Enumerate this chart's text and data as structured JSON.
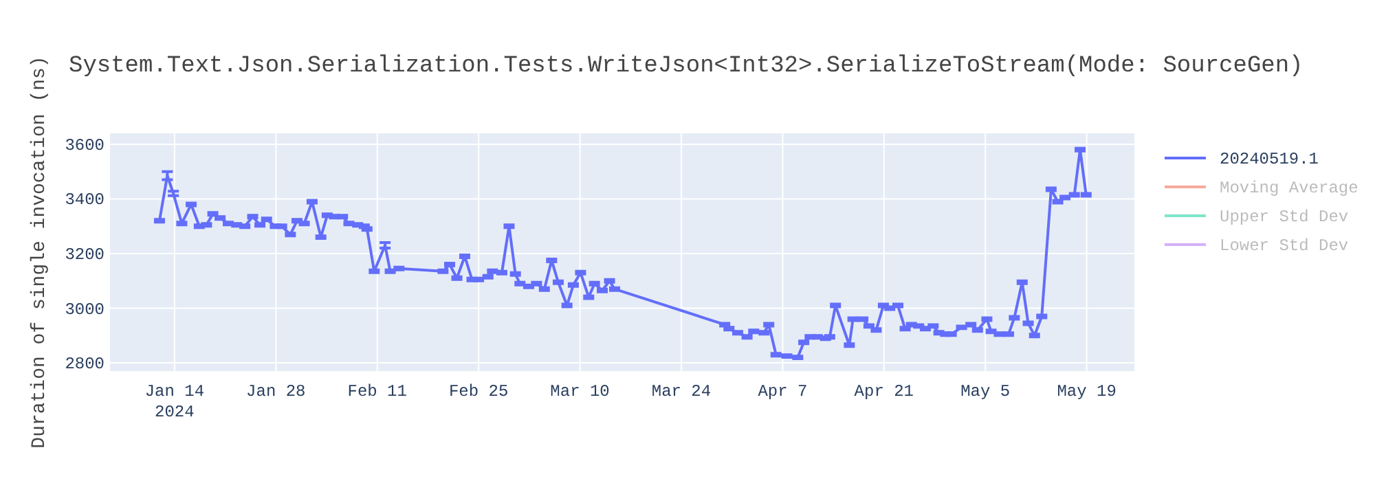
{
  "chart_data": {
    "type": "line",
    "title": "System.Text.Json.Serialization.Tests.WriteJson<Int32>.SerializeToStream(Mode: SourceGen)",
    "ylabel": "Duration of single invocation (ns)",
    "x": [
      "2024-01-11T22:00",
      "2024-01-13",
      "2024-01-13T20:00",
      "2024-01-15",
      "2024-01-16T07:00",
      "2024-01-17T10:00",
      "2024-01-18T10:00",
      "2024-01-19T07:00",
      "2024-01-20T07:00",
      "2024-01-21T10:00",
      "2024-01-22T14:00",
      "2024-01-23T17:00",
      "2024-01-24T19:00",
      "2024-01-25T19:00",
      "2024-01-26T17:00",
      "2024-01-27T22:00",
      "2024-01-28T19:00",
      "2024-01-30",
      "2024-01-30T22:00",
      "2024-01-31T22:00",
      "2024-02-02",
      "2024-02-03T05:00",
      "2024-02-04T02:00",
      "2024-02-05T02:00",
      "2024-02-06T05:00",
      "2024-02-07T02:00",
      "2024-02-08T07:00",
      "2024-02-09T05:00",
      "2024-02-09T14:00",
      "2024-02-10T14:00",
      "2024-02-12T02:00",
      "2024-02-12T19:00",
      "2024-02-14",
      "2024-02-20T02:00",
      "2024-02-21",
      "2024-02-22",
      "2024-02-23T02:00",
      "2024-02-24T02:00",
      "2024-02-25",
      "2024-02-26T07:00",
      "2024-02-26T22:00",
      "2024-02-28T05:00",
      "2024-02-29T05:00",
      "2024-03-01T02:00",
      "2024-03-01T17:00",
      "2024-03-02T22:00",
      "2024-03-04",
      "2024-03-05T02:00",
      "2024-03-06T02:00",
      "2024-03-07",
      "2024-03-08T05:00",
      "2024-03-09T02:00",
      "2024-03-10T02:00",
      "2024-03-11T05:00",
      "2024-03-12",
      "2024-03-13T02:00",
      "2024-03-14T02:00",
      "2024-03-14T19:00",
      "2024-03-30",
      "2024-03-30T14:00",
      "2024-03-31T19:00",
      "2024-04-02T02:00",
      "2024-04-03",
      "2024-04-04T10:00",
      "2024-04-05T02:00",
      "2024-04-06T02:00",
      "2024-04-07T14:00",
      "2024-04-09T02:00",
      "2024-04-09T22:00",
      "2024-04-10T19:00",
      "2024-04-11T19:00",
      "2024-04-12T22:00",
      "2024-04-13T12:00",
      "2024-04-14T07:00",
      "2024-04-16T05:00",
      "2024-04-16T17:00",
      "2024-04-18T02:00",
      "2024-04-18T22:00",
      "2024-04-19T22:00",
      "2024-04-20T22:00",
      "2024-04-21T19:00",
      "2024-04-22T22:00",
      "2024-04-23T22:00",
      "2024-04-24T19:00",
      "2024-04-25T19:00",
      "2024-04-26T17:00",
      "2024-04-27T19:00",
      "2024-04-28T14:00",
      "2024-04-29T12:00",
      "2024-04-30T07:00",
      "2024-05-01T17:00",
      "2024-05-03",
      "2024-05-03T22:00",
      "2024-05-05T05:00",
      "2024-05-05T19:00",
      "2024-05-06T22:00",
      "2024-05-08T05:00",
      "2024-05-09",
      "2024-05-10T02:00",
      "2024-05-10T22:00",
      "2024-05-11T19:00",
      "2024-05-12T19:00",
      "2024-05-14T02:00",
      "2024-05-15",
      "2024-05-16",
      "2024-05-17T07:00",
      "2024-05-18T02:00",
      "2024-05-18T22:00"
    ],
    "series": [
      {
        "name": "20240519.1",
        "color": "#636efa",
        "values": [
          3320,
          3485,
          3420,
          3310,
          3380,
          3300,
          3305,
          3345,
          3330,
          3310,
          3305,
          3300,
          3335,
          3305,
          3325,
          3300,
          3300,
          3270,
          3320,
          3310,
          3390,
          3260,
          3340,
          3335,
          3335,
          3310,
          3305,
          3300,
          3290,
          3135,
          3230,
          3135,
          3145,
          3135,
          3160,
          3110,
          3190,
          3105,
          3105,
          3115,
          3135,
          3130,
          3300,
          3125,
          3090,
          3080,
          3090,
          3070,
          3175,
          3095,
          3010,
          3085,
          3130,
          3040,
          3090,
          3065,
          3100,
          3070,
          2940,
          2925,
          2910,
          2895,
          2915,
          2910,
          2940,
          2830,
          2825,
          2820,
          2875,
          2895,
          2895,
          2890,
          2895,
          3010,
          2865,
          2960,
          2960,
          2935,
          2920,
          3010,
          3000,
          3010,
          2925,
          2940,
          2935,
          2925,
          2935,
          2910,
          2905,
          2905,
          2930,
          2940,
          2920,
          2960,
          2915,
          2905,
          2905,
          2965,
          3095,
          2945,
          2900,
          2970,
          3435,
          3390,
          3405,
          3415,
          3580,
          3415
        ],
        "errors": [
          5,
          15,
          8,
          5,
          5,
          5,
          5,
          5,
          5,
          5,
          5,
          5,
          5,
          5,
          5,
          5,
          5,
          5,
          5,
          5,
          5,
          5,
          5,
          5,
          5,
          5,
          5,
          5,
          5,
          5,
          10,
          5,
          5,
          5,
          5,
          5,
          5,
          5,
          5,
          5,
          5,
          5,
          5,
          5,
          5,
          5,
          5,
          5,
          5,
          5,
          5,
          5,
          5,
          5,
          5,
          5,
          5,
          5,
          5,
          5,
          5,
          5,
          5,
          5,
          5,
          5,
          5,
          5,
          5,
          5,
          5,
          5,
          5,
          5,
          5,
          5,
          5,
          5,
          5,
          5,
          5,
          5,
          5,
          5,
          5,
          5,
          5,
          5,
          5,
          5,
          5,
          5,
          5,
          5,
          5,
          5,
          5,
          5,
          5,
          5,
          5,
          5,
          5,
          5,
          5,
          5,
          5,
          5
        ]
      },
      {
        "name": "Moving Average",
        "color": "#ef553b",
        "values": [
          null,
          null,
          null,
          null,
          null,
          null,
          null,
          null,
          null,
          null,
          null,
          null,
          null,
          null,
          null,
          null,
          null,
          null,
          null,
          null,
          null,
          null,
          null,
          null,
          null,
          null,
          null,
          null,
          null,
          null,
          null,
          null,
          null,
          null,
          null,
          null,
          null,
          null,
          null,
          null,
          null,
          null,
          null,
          null,
          null,
          null,
          null,
          null,
          null,
          null,
          null,
          null,
          null,
          null,
          null,
          null,
          null,
          null,
          null,
          null,
          null,
          null,
          null,
          null,
          null,
          null,
          null,
          null,
          null,
          null,
          null,
          null,
          null,
          null,
          null,
          null,
          null,
          null,
          null,
          null,
          null,
          null,
          null,
          null,
          null,
          null,
          null,
          null,
          null,
          null,
          null,
          null,
          null,
          null,
          null,
          null,
          null,
          null,
          null,
          null,
          null,
          null,
          null,
          null,
          null,
          null,
          null,
          null
        ]
      },
      {
        "name": "Upper Std Dev",
        "color": "#00cc96",
        "values": [
          null,
          null,
          null,
          null,
          null,
          null,
          null,
          null,
          null,
          null,
          null,
          null,
          null,
          null,
          null,
          null,
          null,
          null,
          null,
          null,
          null,
          null,
          null,
          null,
          null,
          null,
          null,
          null,
          null,
          null,
          null,
          null,
          null,
          null,
          null,
          null,
          null,
          null,
          null,
          null,
          null,
          null,
          null,
          null,
          null,
          null,
          null,
          null,
          null,
          null,
          null,
          null,
          null,
          null,
          null,
          null,
          null,
          null,
          null,
          null,
          null,
          null,
          null,
          null,
          null,
          null,
          null,
          null,
          null,
          null,
          null,
          null,
          null,
          null,
          null,
          null,
          null,
          null,
          null,
          null,
          null,
          null,
          null,
          null,
          null,
          null,
          null,
          null,
          null,
          null,
          null,
          null,
          null,
          null,
          null,
          null,
          null,
          null,
          null,
          null,
          null,
          null,
          null,
          null,
          null,
          null,
          null,
          null
        ]
      },
      {
        "name": "Lower Std Dev",
        "color": "#ab63fa",
        "values": [
          null,
          null,
          null,
          null,
          null,
          null,
          null,
          null,
          null,
          null,
          null,
          null,
          null,
          null,
          null,
          null,
          null,
          null,
          null,
          null,
          null,
          null,
          null,
          null,
          null,
          null,
          null,
          null,
          null,
          null,
          null,
          null,
          null,
          null,
          null,
          null,
          null,
          null,
          null,
          null,
          null,
          null,
          null,
          null,
          null,
          null,
          null,
          null,
          null,
          null,
          null,
          null,
          null,
          null,
          null,
          null,
          null,
          null,
          null,
          null,
          null,
          null,
          null,
          null,
          null,
          null,
          null,
          null,
          null,
          null,
          null,
          null,
          null,
          null,
          null,
          null,
          null,
          null,
          null,
          null,
          null,
          null,
          null,
          null,
          null,
          null,
          null,
          null,
          null,
          null,
          null,
          null,
          null,
          null,
          null,
          null,
          null,
          null,
          null,
          null,
          null,
          null,
          null,
          null,
          null,
          null,
          null,
          null
        ]
      }
    ],
    "xlim": [
      "2024-01-05T02:00",
      "2024-05-25T14:00"
    ],
    "xticks": [
      {
        "value": "2024-01-14",
        "label": "Jan 14\n2024"
      },
      {
        "value": "2024-01-28",
        "label": "Jan 28"
      },
      {
        "value": "2024-02-11",
        "label": "Feb 11"
      },
      {
        "value": "2024-02-25",
        "label": "Feb 25"
      },
      {
        "value": "2024-03-10",
        "label": "Mar 10"
      },
      {
        "value": "2024-03-24",
        "label": "Mar 24"
      },
      {
        "value": "2024-04-07",
        "label": "Apr 7"
      },
      {
        "value": "2024-04-21",
        "label": "Apr 21"
      },
      {
        "value": "2024-05-05",
        "label": "May 5"
      },
      {
        "value": "2024-05-19",
        "label": "May 19"
      }
    ],
    "ylim": [
      2770,
      3640
    ],
    "yticks": [
      2800,
      3000,
      3200,
      3400,
      3600
    ],
    "grid": true,
    "legend": "top right",
    "marker": "none",
    "line_style": "solid"
  }
}
